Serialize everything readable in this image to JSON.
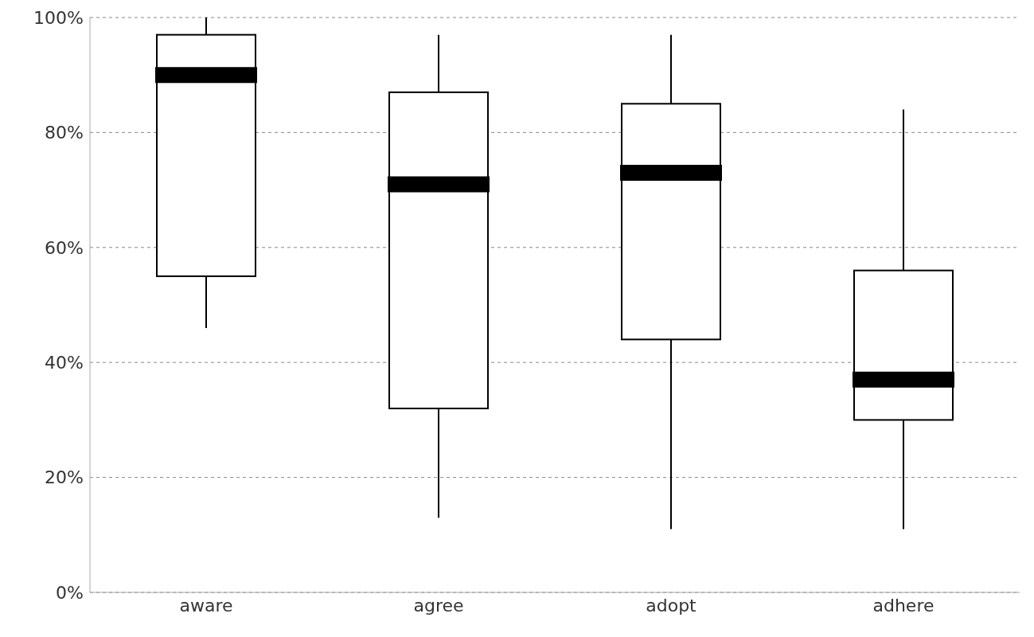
{
  "chart_data": {
    "type": "box",
    "categories": [
      "aware",
      "agree",
      "adopt",
      "adhere"
    ],
    "boxes": [
      {
        "low": 46,
        "q1": 55,
        "median": 90,
        "q3": 97,
        "high": 100
      },
      {
        "low": 13,
        "q1": 32,
        "median": 71,
        "q3": 87,
        "high": 97
      },
      {
        "low": 11,
        "q1": 44,
        "median": 73,
        "q3": 85,
        "high": 97
      },
      {
        "low": 11,
        "q1": 30,
        "median": 37,
        "q3": 56,
        "high": 84
      }
    ],
    "color": "#000000",
    "ylim": [
      0,
      100
    ],
    "yticks": [
      {
        "value": 0,
        "label": "0%"
      },
      {
        "value": 20,
        "label": "20%"
      },
      {
        "value": 40,
        "label": "40%"
      },
      {
        "value": 60,
        "label": "60%"
      },
      {
        "value": 80,
        "label": "80%"
      },
      {
        "value": 100,
        "label": "100%"
      }
    ],
    "grid": "y"
  }
}
